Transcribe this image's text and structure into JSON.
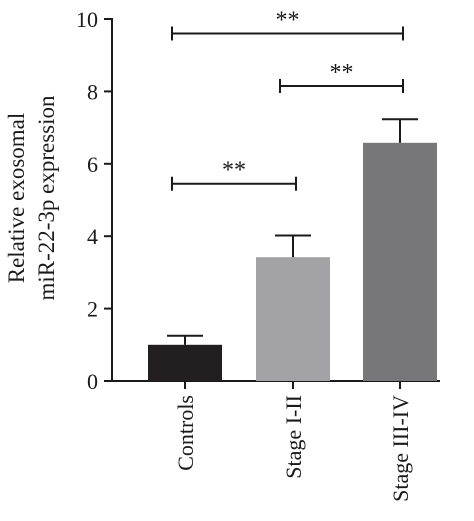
{
  "chart_data": {
    "type": "bar",
    "title": "",
    "xlabel": "",
    "ylabel_lines": [
      "Relative exosomal",
      "miR-22-3p expression"
    ],
    "ylim": [
      0,
      10
    ],
    "yticks": [
      0,
      2,
      4,
      6,
      8,
      10
    ],
    "ytick_labels": [
      "0",
      "2",
      "4",
      "6",
      "8",
      "10"
    ],
    "categories": [
      "Controls",
      "Stage I-II",
      "Stage III-IV"
    ],
    "values": [
      1.0,
      3.42,
      6.58
    ],
    "errors": [
      0.25,
      0.6,
      0.65
    ],
    "bar_colors": [
      "#231f20",
      "#a3a3a6",
      "#77777a"
    ],
    "significance": [
      {
        "from": 0,
        "to": 1,
        "y": 5.45,
        "label": "**"
      },
      {
        "from": 1,
        "to": 2,
        "y": 8.15,
        "label": "**"
      },
      {
        "from": 0,
        "to": 2,
        "y": 9.6,
        "label": "**"
      }
    ],
    "grid": false,
    "legend": "none"
  }
}
